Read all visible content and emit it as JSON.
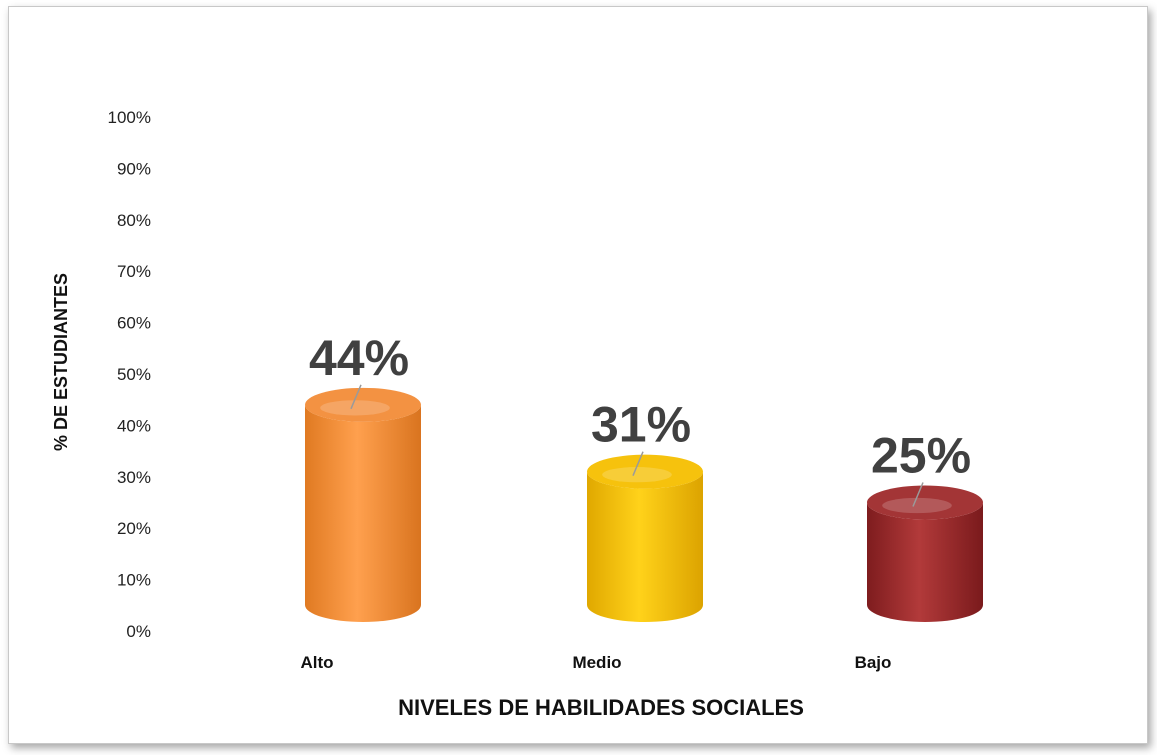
{
  "chart_data": {
    "type": "bar",
    "style": "3d-cylinder",
    "categories": [
      "Alto",
      "Medio",
      "Bajo"
    ],
    "values": [
      44,
      31,
      25
    ],
    "data_labels": [
      "44%",
      "31%",
      "25%"
    ],
    "colors": [
      "#f28c38",
      "#f5bf00",
      "#9e2a2b"
    ],
    "title": "",
    "xlabel": "NIVELES DE HABILIDADES SOCIALES",
    "ylabel": "% DE  ESTUDIANTES",
    "ylim": [
      0,
      100
    ],
    "yticks": [
      "0%",
      "10%",
      "20%",
      "30%",
      "40%",
      "50%",
      "60%",
      "70%",
      "80%",
      "90%",
      "100%"
    ],
    "grid": false,
    "legend": "none"
  }
}
